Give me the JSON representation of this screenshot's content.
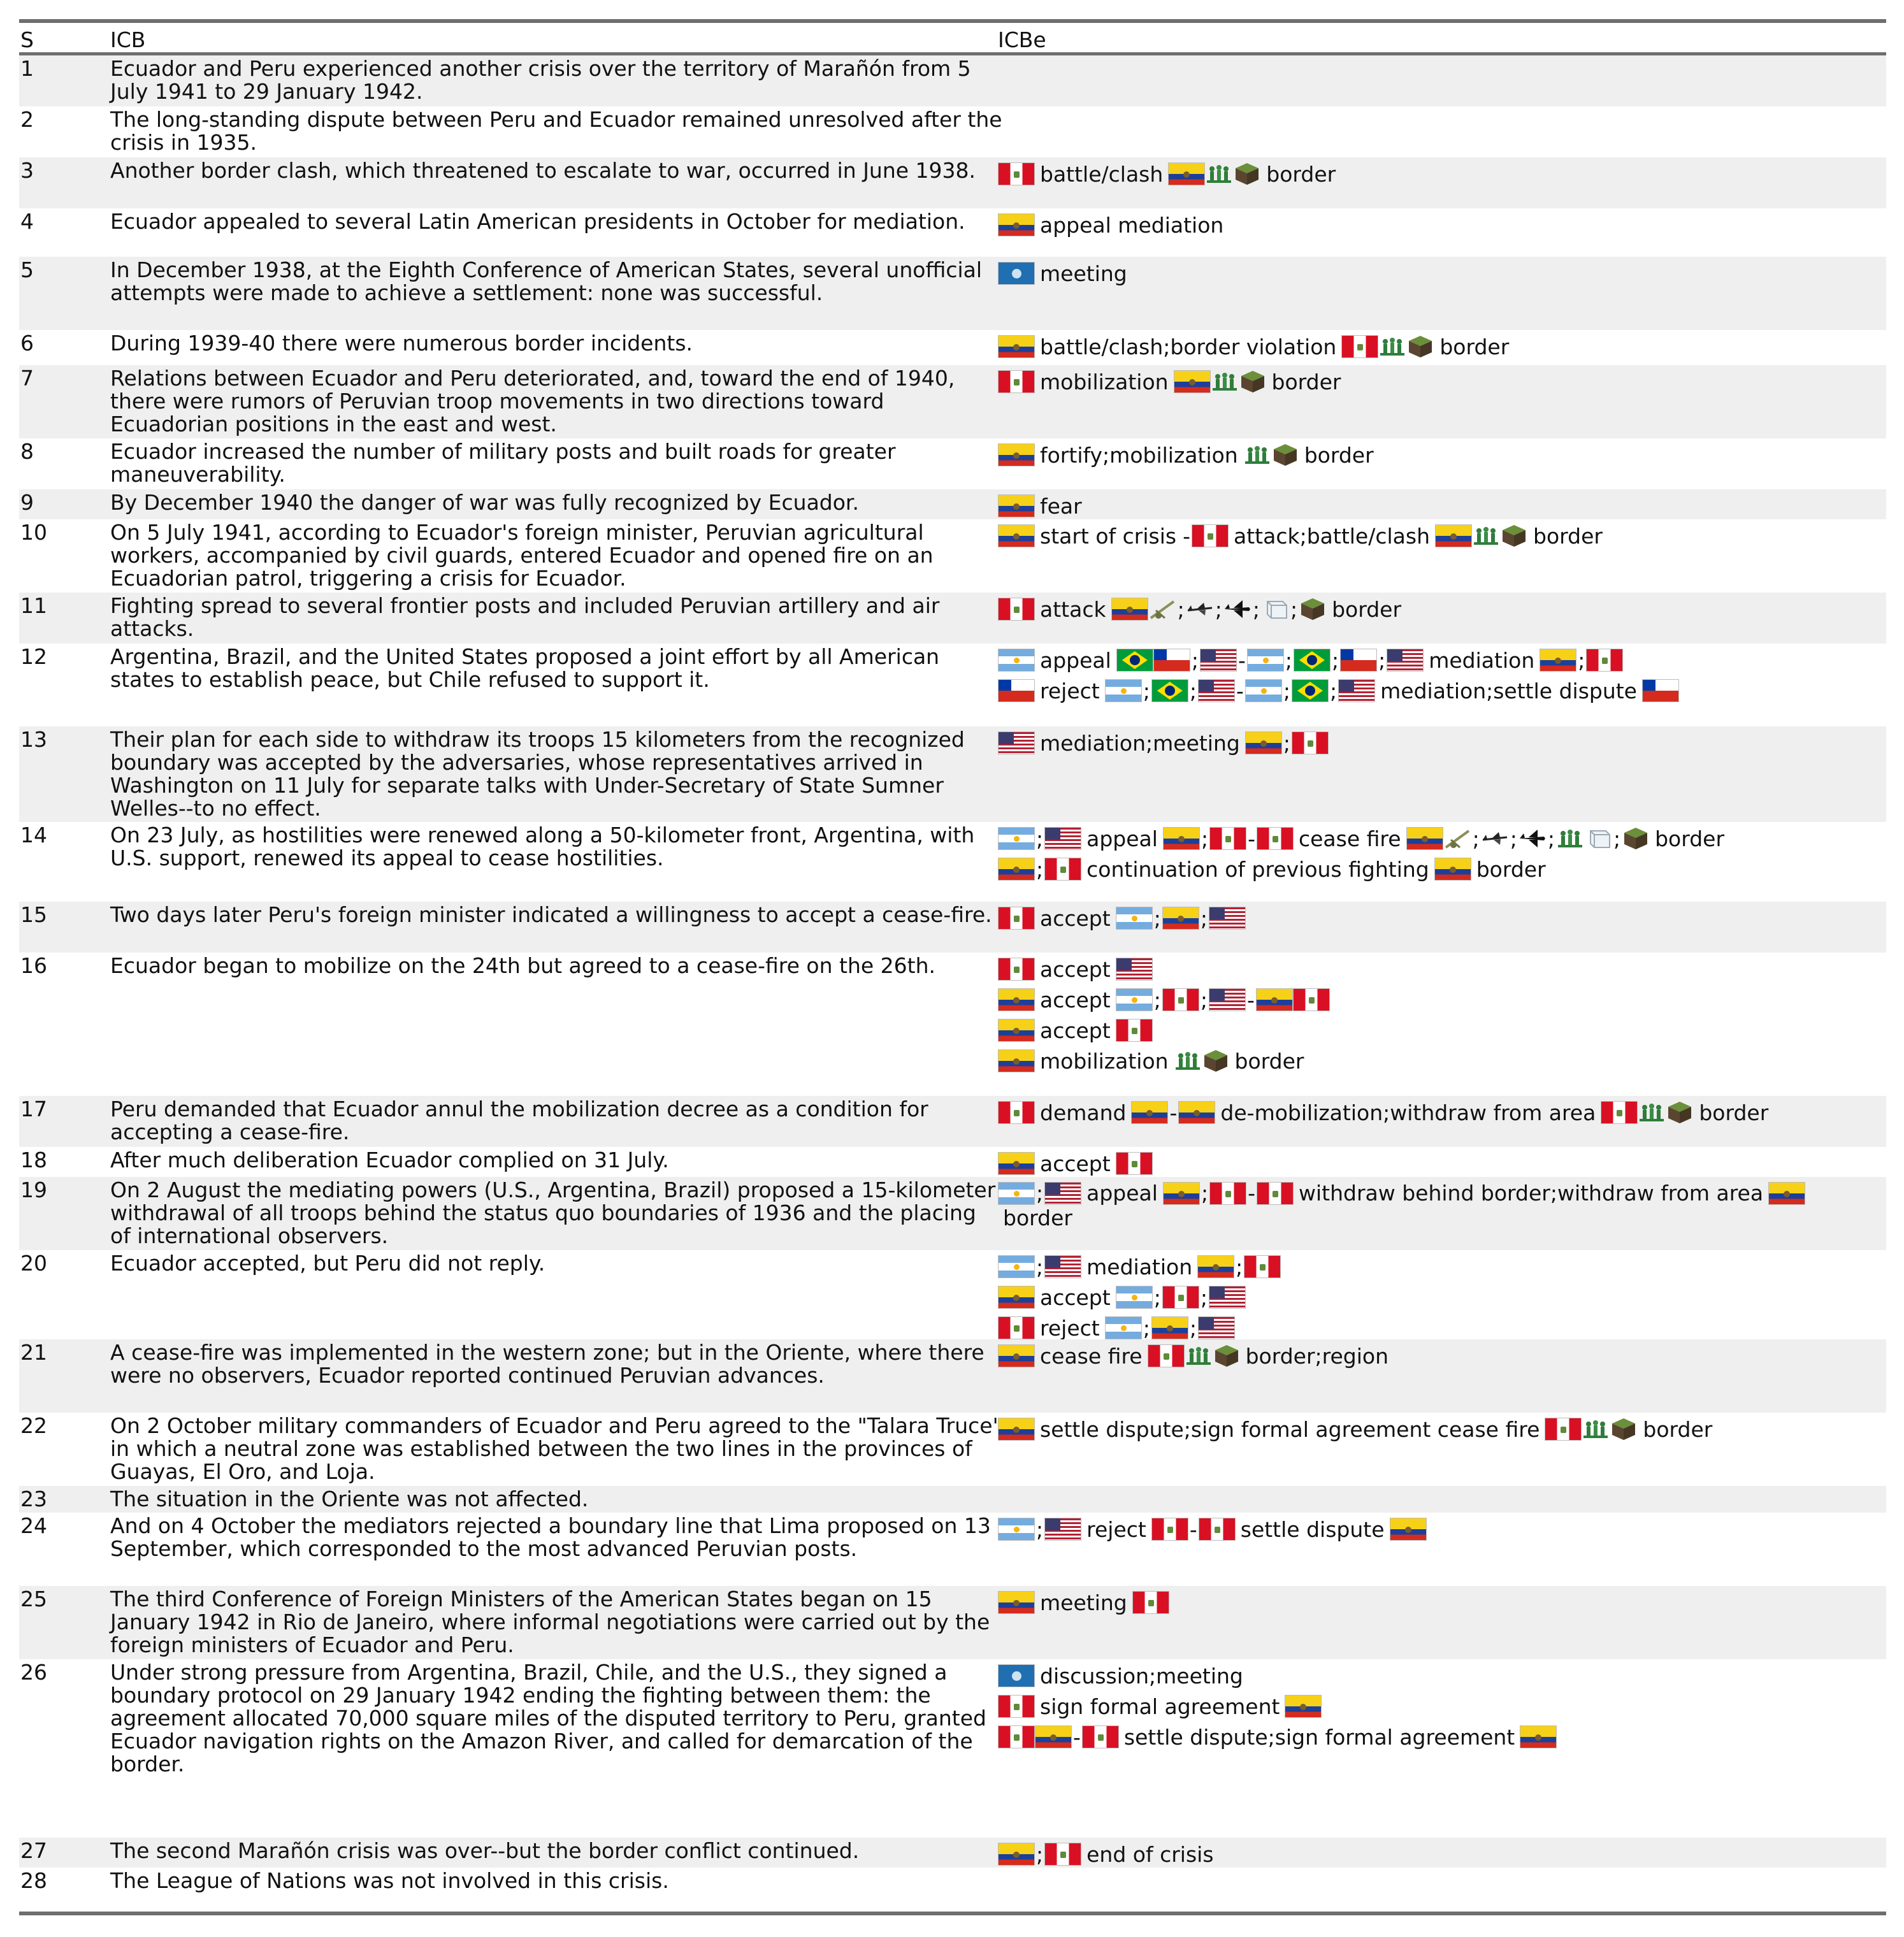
{
  "header": {
    "s": "S",
    "icb": "ICB",
    "icbe": "ICBe"
  },
  "rows": [
    {
      "s": "1",
      "icb": "Ecuador and Peru experienced another crisis over the territory of Marañón from 5 July 1941 to 29 January 1942.",
      "icbe": []
    },
    {
      "s": "2",
      "icb": "The long-standing dispute between Peru and Ecuador remained unresolved after the crisis in 1935.",
      "icbe": []
    },
    {
      "s": "3",
      "icb": "Another border clash, which threatened to escalate to war, occurred in June 1938.",
      "icbe": [
        [
          {
            "f": "pe"
          },
          {
            "t": "battle/clash"
          },
          {
            "f": "ec"
          },
          {
            "i": "troops-icon"
          },
          {
            "i": "land-icon"
          },
          {
            "t": "border"
          }
        ]
      ]
    },
    {
      "s": "4",
      "icb": "Ecuador appealed to several Latin American presidents in October for mediation.",
      "icbe": [
        [
          {
            "f": "ec"
          },
          {
            "t": "appeal mediation"
          }
        ]
      ]
    },
    {
      "s": "5",
      "icb": "In December 1938, at the Eighth Conference of American States, several unofficial attempts were made to achieve a settlement: none was successful.",
      "icbe": [
        [
          {
            "f": "oas"
          },
          {
            "t": "meeting"
          }
        ]
      ]
    },
    {
      "s": "6",
      "icb": "During 1939-40 there were numerous border incidents.",
      "icbe": [
        [
          {
            "f": "ec"
          },
          {
            "t": "battle/clash;border violation"
          },
          {
            "f": "pe"
          },
          {
            "i": "troops-icon"
          },
          {
            "i": "land-icon"
          },
          {
            "t": "border"
          }
        ]
      ]
    },
    {
      "s": "7",
      "icb": "Relations between Ecuador and Peru deteriorated, and, toward the end of 1940, there were rumors of Peruvian troop movements in two directions toward Ecuadorian positions in the east and west.",
      "icbe": [
        [
          {
            "f": "pe"
          },
          {
            "t": "mobilization"
          },
          {
            "f": "ec"
          },
          {
            "i": "troops-icon"
          },
          {
            "i": "land-icon"
          },
          {
            "t": "border"
          }
        ]
      ]
    },
    {
      "s": "8",
      "icb": "Ecuador increased the number of military posts and built roads for greater maneuverability.",
      "icbe": [
        [
          {
            "f": "ec"
          },
          {
            "t": "fortify;mobilization"
          },
          {
            "i": "troops-icon"
          },
          {
            "i": "land-icon"
          },
          {
            "t": "border"
          }
        ]
      ]
    },
    {
      "s": "9",
      "icb": "By December 1940 the danger of war was fully recognized by Ecuador.",
      "icbe": [
        [
          {
            "f": "ec"
          },
          {
            "t": "fear"
          }
        ]
      ]
    },
    {
      "s": "10",
      "icb": "On 5 July 1941, according to Ecuador's foreign minister, Peruvian agricultural workers, accompanied by civil guards, entered Ecuador and opened fire on an Ecuadorian patrol, triggering a crisis for Ecuador.",
      "icbe": [
        [
          {
            "f": "ec"
          },
          {
            "t": "start of crisis"
          },
          {
            "s": "-"
          },
          {
            "f": "pe"
          },
          {
            "t": "attack;battle/clash"
          },
          {
            "f": "ec"
          },
          {
            "i": "troops-icon"
          },
          {
            "i": "land-icon"
          },
          {
            "t": "border"
          }
        ]
      ]
    },
    {
      "s": "11",
      "icb": "Fighting spread to several frontier posts and included Peruvian artillery and air attacks.",
      "icbe": [
        [
          {
            "f": "pe"
          },
          {
            "t": "attack"
          },
          {
            "f": "ec"
          },
          {
            "i": "artillery-icon"
          },
          {
            "s": ";"
          },
          {
            "i": "aircraft-icon"
          },
          {
            "s": ";"
          },
          {
            "i": "jet-icon"
          },
          {
            "s": ";"
          },
          {
            "i": "air-icon"
          },
          {
            "s": ";"
          },
          {
            "i": "land-icon"
          },
          {
            "t": "border"
          }
        ]
      ]
    },
    {
      "s": "12",
      "icb": "Argentina, Brazil, and the United States proposed a joint effort by all American states to establish peace, but Chile refused to support it.",
      "icbe": [
        [
          {
            "f": "ar"
          },
          {
            "t": "appeal"
          },
          {
            "f": "br"
          },
          {
            "f": "cl"
          },
          {
            "s": ";"
          },
          {
            "f": "us"
          },
          {
            "s": "-"
          },
          {
            "f": "ar"
          },
          {
            "s": ";"
          },
          {
            "f": "br"
          },
          {
            "s": ";"
          },
          {
            "f": "cl"
          },
          {
            "s": ";"
          },
          {
            "f": "us"
          },
          {
            "t": "mediation"
          },
          {
            "f": "ec"
          },
          {
            "s": ";"
          },
          {
            "f": "pe"
          }
        ],
        [
          {
            "f": "cl"
          },
          {
            "t": "reject"
          },
          {
            "f": "ar"
          },
          {
            "s": ";"
          },
          {
            "f": "br"
          },
          {
            "s": ";"
          },
          {
            "f": "us"
          },
          {
            "s": "-"
          },
          {
            "f": "ar"
          },
          {
            "s": ";"
          },
          {
            "f": "br"
          },
          {
            "s": ";"
          },
          {
            "f": "us"
          },
          {
            "t": "mediation;settle dispute"
          },
          {
            "f": "cl"
          }
        ]
      ]
    },
    {
      "s": "13",
      "icb": "Their plan for each side to withdraw its troops 15 kilometers from the recognized boundary was accepted by the adversaries, whose representatives arrived in Washington on 11 July for separate talks with Under-Secretary of State Sumner Welles--to no effect.",
      "icbe": [
        [
          {
            "f": "us"
          },
          {
            "t": "mediation;meeting"
          },
          {
            "f": "ec"
          },
          {
            "s": ";"
          },
          {
            "f": "pe"
          }
        ]
      ]
    },
    {
      "s": "14",
      "icb": "On 23 July, as hostilities were renewed along a 50-kilometer front, Argentina, with U.S. support, renewed its appeal to cease hostilities.",
      "icbe": [
        [
          {
            "f": "ar"
          },
          {
            "s": ";"
          },
          {
            "f": "us"
          },
          {
            "t": "appeal"
          },
          {
            "f": "ec"
          },
          {
            "s": ";"
          },
          {
            "f": "pe"
          },
          {
            "s": "-"
          },
          {
            "f": "pe"
          },
          {
            "t": "cease fire"
          },
          {
            "f": "ec"
          },
          {
            "i": "artillery-icon"
          },
          {
            "s": ";"
          },
          {
            "i": "aircraft-icon"
          },
          {
            "s": ";"
          },
          {
            "i": "jet-icon"
          },
          {
            "s": ";"
          },
          {
            "i": "troops-icon"
          },
          {
            "i": "air-icon"
          },
          {
            "s": ";"
          },
          {
            "i": "land-icon"
          },
          {
            "t": "border"
          }
        ],
        [
          {
            "f": "ec"
          },
          {
            "s": ";"
          },
          {
            "f": "pe"
          },
          {
            "t": "continuation of previous fighting"
          },
          {
            "f": "ec"
          },
          {
            "t": "border"
          }
        ]
      ]
    },
    {
      "s": "15",
      "icb": "Two days later Peru's foreign minister indicated a willingness to accept a cease-fire.",
      "icbe": [
        [
          {
            "f": "pe"
          },
          {
            "t": "accept"
          },
          {
            "f": "ar"
          },
          {
            "s": ";"
          },
          {
            "f": "ec"
          },
          {
            "s": ";"
          },
          {
            "f": "us"
          }
        ]
      ]
    },
    {
      "s": "16",
      "icb": "Ecuador began to mobilize on the 24th but agreed to a cease-fire on the 26th.",
      "icbe": [
        [
          {
            "f": "pe"
          },
          {
            "t": "accept"
          },
          {
            "f": "us"
          }
        ],
        [
          {
            "f": "ec"
          },
          {
            "t": "accept"
          },
          {
            "f": "ar"
          },
          {
            "s": ";"
          },
          {
            "f": "pe"
          },
          {
            "s": ";"
          },
          {
            "f": "us"
          },
          {
            "s": "-"
          },
          {
            "f": "ec"
          },
          {
            "f": "pe"
          }
        ],
        [
          {
            "f": "ec"
          },
          {
            "t": "accept"
          },
          {
            "f": "pe"
          }
        ],
        [
          {
            "f": "ec"
          },
          {
            "t": "mobilization"
          },
          {
            "i": "troops-icon"
          },
          {
            "i": "land-icon"
          },
          {
            "t": "border"
          }
        ]
      ]
    },
    {
      "s": "17",
      "icb": "Peru demanded that Ecuador annul the mobilization decree as a condition for accepting a cease-fire.",
      "icbe": [
        [
          {
            "f": "pe"
          },
          {
            "t": "demand"
          },
          {
            "f": "ec"
          },
          {
            "s": "-"
          },
          {
            "f": "ec"
          },
          {
            "t": "de-mobilization;withdraw from area"
          },
          {
            "f": "pe"
          },
          {
            "i": "troops-icon"
          },
          {
            "i": "land-icon"
          },
          {
            "t": "border"
          }
        ]
      ]
    },
    {
      "s": "18",
      "icb": "After much deliberation Ecuador complied on 31 July.",
      "icbe": [
        [
          {
            "f": "ec"
          },
          {
            "t": "accept"
          },
          {
            "f": "pe"
          }
        ]
      ]
    },
    {
      "s": "19",
      "icb": "On 2 August the mediating powers (U.S., Argentina, Brazil) proposed a 15-kilometer withdrawal of all troops behind the status quo boundaries of 1936 and the placing of international observers.",
      "icbe": [
        [
          {
            "f": "ar"
          },
          {
            "s": ";"
          },
          {
            "f": "us"
          },
          {
            "t": "appeal"
          },
          {
            "f": "ec"
          },
          {
            "s": ";"
          },
          {
            "f": "pe"
          },
          {
            "s": "-"
          },
          {
            "f": "pe"
          },
          {
            "t": "withdraw behind border;withdraw from area"
          },
          {
            "f": "ec"
          },
          {
            "t": "border"
          }
        ]
      ]
    },
    {
      "s": "20",
      "icb": "Ecuador accepted, but Peru did not reply.",
      "icbe": [
        [
          {
            "f": "ar"
          },
          {
            "s": ";"
          },
          {
            "f": "us"
          },
          {
            "t": "mediation"
          },
          {
            "f": "ec"
          },
          {
            "s": ";"
          },
          {
            "f": "pe"
          }
        ],
        [
          {
            "f": "ec"
          },
          {
            "t": "accept"
          },
          {
            "f": "ar"
          },
          {
            "s": ";"
          },
          {
            "f": "pe"
          },
          {
            "s": ";"
          },
          {
            "f": "us"
          }
        ],
        [
          {
            "f": "pe"
          },
          {
            "t": "reject"
          },
          {
            "f": "ar"
          },
          {
            "s": ";"
          },
          {
            "f": "ec"
          },
          {
            "s": ";"
          },
          {
            "f": "us"
          }
        ]
      ]
    },
    {
      "s": "21",
      "icb": "A cease-fire was implemented in the western zone; but in the Oriente, where there were no observers, Ecuador reported continued Peruvian advances.",
      "icbe": [
        [
          {
            "f": "ec"
          },
          {
            "t": "cease fire"
          },
          {
            "f": "pe"
          },
          {
            "i": "troops-icon"
          },
          {
            "i": "land-icon"
          },
          {
            "t": "border;region"
          }
        ]
      ]
    },
    {
      "s": "22",
      "icb": "On 2 October military commanders of Ecuador and Peru agreed to the \"Talara Truce\" in which a neutral zone was established between the two lines in the provinces of Guayas, El Oro, and Loja.",
      "icbe": [
        [
          {
            "f": "ec"
          },
          {
            "t": "settle dispute;sign formal agreement cease fire"
          },
          {
            "f": "pe"
          },
          {
            "i": "troops-icon"
          },
          {
            "i": "land-icon"
          },
          {
            "t": "border"
          }
        ]
      ]
    },
    {
      "s": "23",
      "icb": "The situation in the Oriente was not affected.",
      "icbe": []
    },
    {
      "s": "24",
      "icb": "And on 4 October the mediators rejected a boundary line that Lima proposed on 13 September, which corresponded to the most advanced Peruvian posts.",
      "icbe": [
        [
          {
            "f": "ar"
          },
          {
            "s": ";"
          },
          {
            "f": "us"
          },
          {
            "t": "reject"
          },
          {
            "f": "pe"
          },
          {
            "s": "-"
          },
          {
            "f": "pe"
          },
          {
            "t": "settle dispute"
          },
          {
            "f": "ec"
          }
        ]
      ]
    },
    {
      "s": "25",
      "icb": "The third Conference of Foreign Ministers of the American States began on 15 January 1942 in Rio de Janeiro, where informal negotiations were carried out by the foreign ministers of Ecuador and Peru.",
      "icbe": [
        [
          {
            "f": "ec"
          },
          {
            "t": "meeting"
          },
          {
            "f": "pe"
          }
        ]
      ]
    },
    {
      "s": "26",
      "icb": "Under strong pressure from Argentina, Brazil, Chile, and the U.S., they signed a boundary protocol on 29 January 1942 ending the fighting between them: the agreement allocated 70,000 square miles of the disputed territory to Peru, granted Ecuador navigation rights on the Amazon River, and called for demarcation of the border.",
      "icbe": [
        [
          {
            "f": "oas"
          },
          {
            "t": "discussion;meeting"
          }
        ],
        [
          {
            "f": "pe"
          },
          {
            "t": "sign formal agreement"
          },
          {
            "f": "ec"
          }
        ],
        [
          {
            "f": "pe"
          },
          {
            "f": "ec"
          },
          {
            "s": "-"
          },
          {
            "f": "pe"
          },
          {
            "t": "settle dispute;sign formal agreement"
          },
          {
            "f": "ec"
          }
        ]
      ]
    },
    {
      "s": "27",
      "icb": "The second Marañón crisis was over--but the border conflict continued.",
      "icbe": [
        [
          {
            "f": "ec"
          },
          {
            "s": ";"
          },
          {
            "f": "pe"
          },
          {
            "t": "end of crisis"
          }
        ]
      ]
    },
    {
      "s": "28",
      "icb": "The League of Nations was not involved in this crisis.",
      "icbe": []
    }
  ]
}
